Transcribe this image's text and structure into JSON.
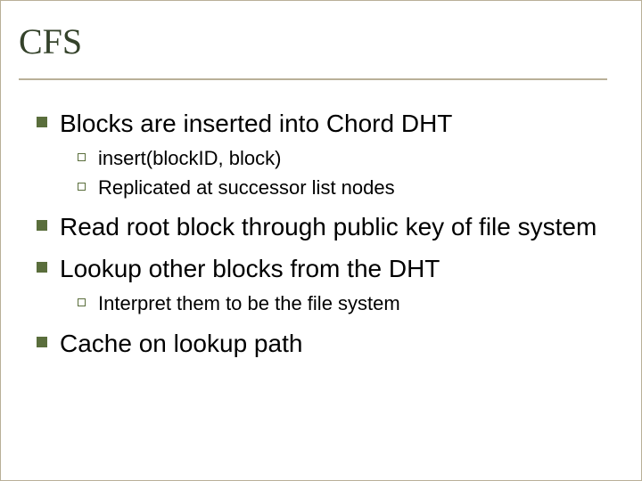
{
  "slide": {
    "title": "CFS",
    "colors": {
      "title_text": "#34422a",
      "rule": "#b9b098",
      "bullet_fill": "#5a6e3c",
      "bullet_hollow_border": "#5a6e3c",
      "body_text": "#000000",
      "background": "#ffffff"
    },
    "fonts": {
      "title_family": "Times New Roman",
      "title_size_pt": 30,
      "body_family": "Arial",
      "lvl1_size_pt": 21,
      "lvl2_size_pt": 16
    },
    "bullets": [
      {
        "text": "Blocks are inserted into Chord DHT",
        "children": [
          {
            "text": "insert(blockID, block)"
          },
          {
            "text": "Replicated at successor list nodes"
          }
        ]
      },
      {
        "text": "Read root block through public key of file system",
        "children": []
      },
      {
        "text": "Lookup other blocks from the DHT",
        "children": [
          {
            "text": "Interpret them to be the file system"
          }
        ]
      },
      {
        "text": "Cache on lookup path",
        "children": []
      }
    ]
  }
}
